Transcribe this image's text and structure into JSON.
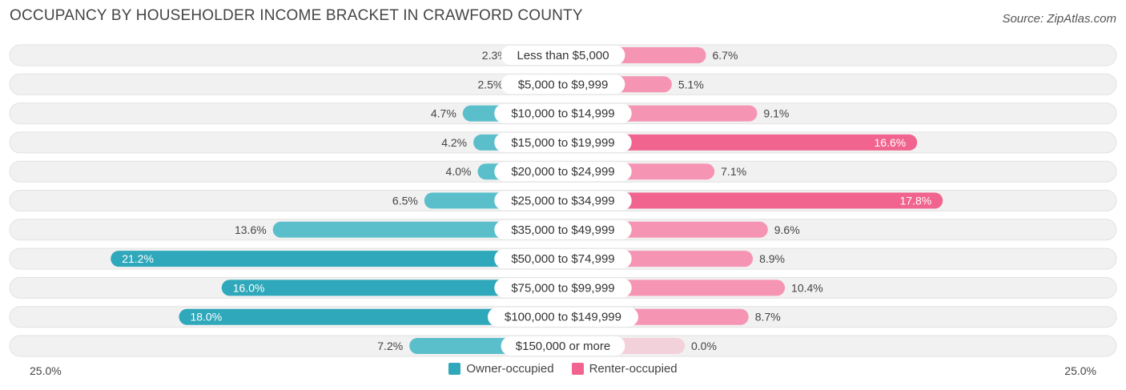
{
  "title": "OCCUPANCY BY HOUSEHOLDER INCOME BRACKET IN CRAWFORD COUNTY",
  "source": "Source: ZipAtlas.com",
  "colors": {
    "owner": "#5bbfcb",
    "owner_strong": "#2ea8ba",
    "renter": "#f595b3",
    "renter_strong": "#f0648f",
    "row_bg": "#f1f1f1"
  },
  "axis": {
    "left_label": "25.0%",
    "right_label": "25.0%"
  },
  "legend": {
    "owner_label": "Owner-occupied",
    "renter_label": "Renter-occupied"
  },
  "chart_data": {
    "type": "bar",
    "orientation": "horizontal-diverging",
    "title": "OCCUPANCY BY HOUSEHOLDER INCOME BRACKET IN CRAWFORD COUNTY",
    "xlim": [
      -25,
      25
    ],
    "categories": [
      "Less than $5,000",
      "$5,000 to $9,999",
      "$10,000 to $14,999",
      "$15,000 to $19,999",
      "$20,000 to $24,999",
      "$25,000 to $34,999",
      "$35,000 to $49,999",
      "$50,000 to $74,999",
      "$75,000 to $99,999",
      "$100,000 to $149,999",
      "$150,000 or more"
    ],
    "series": [
      {
        "name": "Owner-occupied",
        "values": [
          2.3,
          2.5,
          4.7,
          4.2,
          4.0,
          6.5,
          13.6,
          21.2,
          16.0,
          18.0,
          7.2
        ],
        "labels": [
          "2.3%",
          "2.5%",
          "4.7%",
          "4.2%",
          "4.0%",
          "6.5%",
          "13.6%",
          "21.2%",
          "16.0%",
          "18.0%",
          "7.2%"
        ]
      },
      {
        "name": "Renter-occupied",
        "values": [
          6.7,
          5.1,
          9.1,
          16.6,
          7.1,
          17.8,
          9.6,
          8.9,
          10.4,
          8.7,
          0.0
        ],
        "labels": [
          "6.7%",
          "5.1%",
          "9.1%",
          "16.6%",
          "7.1%",
          "17.8%",
          "9.6%",
          "8.9%",
          "10.4%",
          "8.7%",
          "0.0%"
        ]
      }
    ],
    "legend_position": "bottom-center"
  }
}
